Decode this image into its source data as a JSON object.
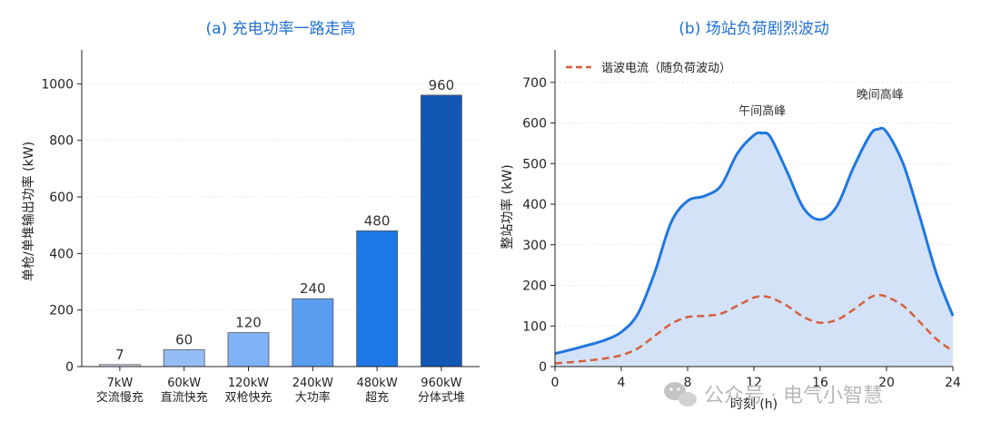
{
  "watermark": "公众号 · 电气小智慧",
  "chart_data": [
    {
      "type": "bar",
      "title": "(a) 充电功率一路走高",
      "ylabel": "单枪/单堆输出功率 (kW)",
      "ylim": [
        0,
        1120
      ],
      "yticks": [
        0,
        200,
        400,
        600,
        800,
        1000
      ],
      "grid": true,
      "categories": [
        [
          "7kW",
          "交流慢充"
        ],
        [
          "60kW",
          "直流快充"
        ],
        [
          "120kW",
          "双枪快充"
        ],
        [
          "240kW",
          "大功率"
        ],
        [
          "480kW",
          "超充"
        ],
        [
          "960kW",
          "分体式堆"
        ]
      ],
      "values": [
        7,
        60,
        120,
        240,
        480,
        960
      ],
      "bar_colors": [
        "#d0dbee",
        "#95bdf5",
        "#7fb1f4",
        "#5a9cf0",
        "#1e77e6",
        "#1357b5"
      ]
    },
    {
      "type": "area",
      "title": "(b) 场站负荷剧烈波动",
      "xlabel": "时刻 (h)",
      "ylabel": "整站功率 (kW)",
      "xlim": [
        0,
        24
      ],
      "ylim": [
        0,
        780
      ],
      "xticks": [
        0,
        4,
        8,
        12,
        16,
        20,
        24
      ],
      "yticks": [
        0,
        100,
        200,
        300,
        400,
        500,
        600,
        700
      ],
      "grid": true,
      "legend_position": "top-left",
      "series": [
        {
          "name": "",
          "style": "solid-filled",
          "color": "#1f77e0",
          "fill": "#d3e2f7",
          "x": [
            0,
            1,
            2,
            3,
            4,
            5,
            6,
            7,
            8,
            9,
            10,
            11,
            12,
            12.5,
            13,
            14,
            15,
            16,
            17,
            18,
            19,
            19.5,
            20,
            21,
            22,
            23,
            24
          ],
          "y": [
            32,
            42,
            53,
            65,
            85,
            130,
            230,
            355,
            408,
            420,
            445,
            525,
            570,
            575,
            565,
            480,
            390,
            362,
            395,
            490,
            570,
            585,
            578,
            500,
            370,
            230,
            125
          ]
        },
        {
          "name": "谐波电流（随负荷波动）",
          "style": "dashed",
          "color": "#d65f3c",
          "x": [
            0,
            1,
            2,
            3,
            4,
            5,
            6,
            7,
            8,
            9,
            10,
            11,
            12,
            12.5,
            13,
            14,
            15,
            16,
            17,
            18,
            19,
            19.5,
            20,
            21,
            22,
            23,
            24
          ],
          "y": [
            8,
            11,
            15,
            20,
            28,
            45,
            75,
            105,
            122,
            125,
            130,
            150,
            170,
            173,
            170,
            150,
            122,
            108,
            115,
            140,
            170,
            176,
            172,
            150,
            110,
            68,
            38
          ]
        }
      ],
      "annotations": [
        {
          "text": "午间高峰",
          "x": 12.5,
          "y": 620
        },
        {
          "text": "晚间高峰",
          "x": 19.6,
          "y": 660
        }
      ]
    }
  ]
}
